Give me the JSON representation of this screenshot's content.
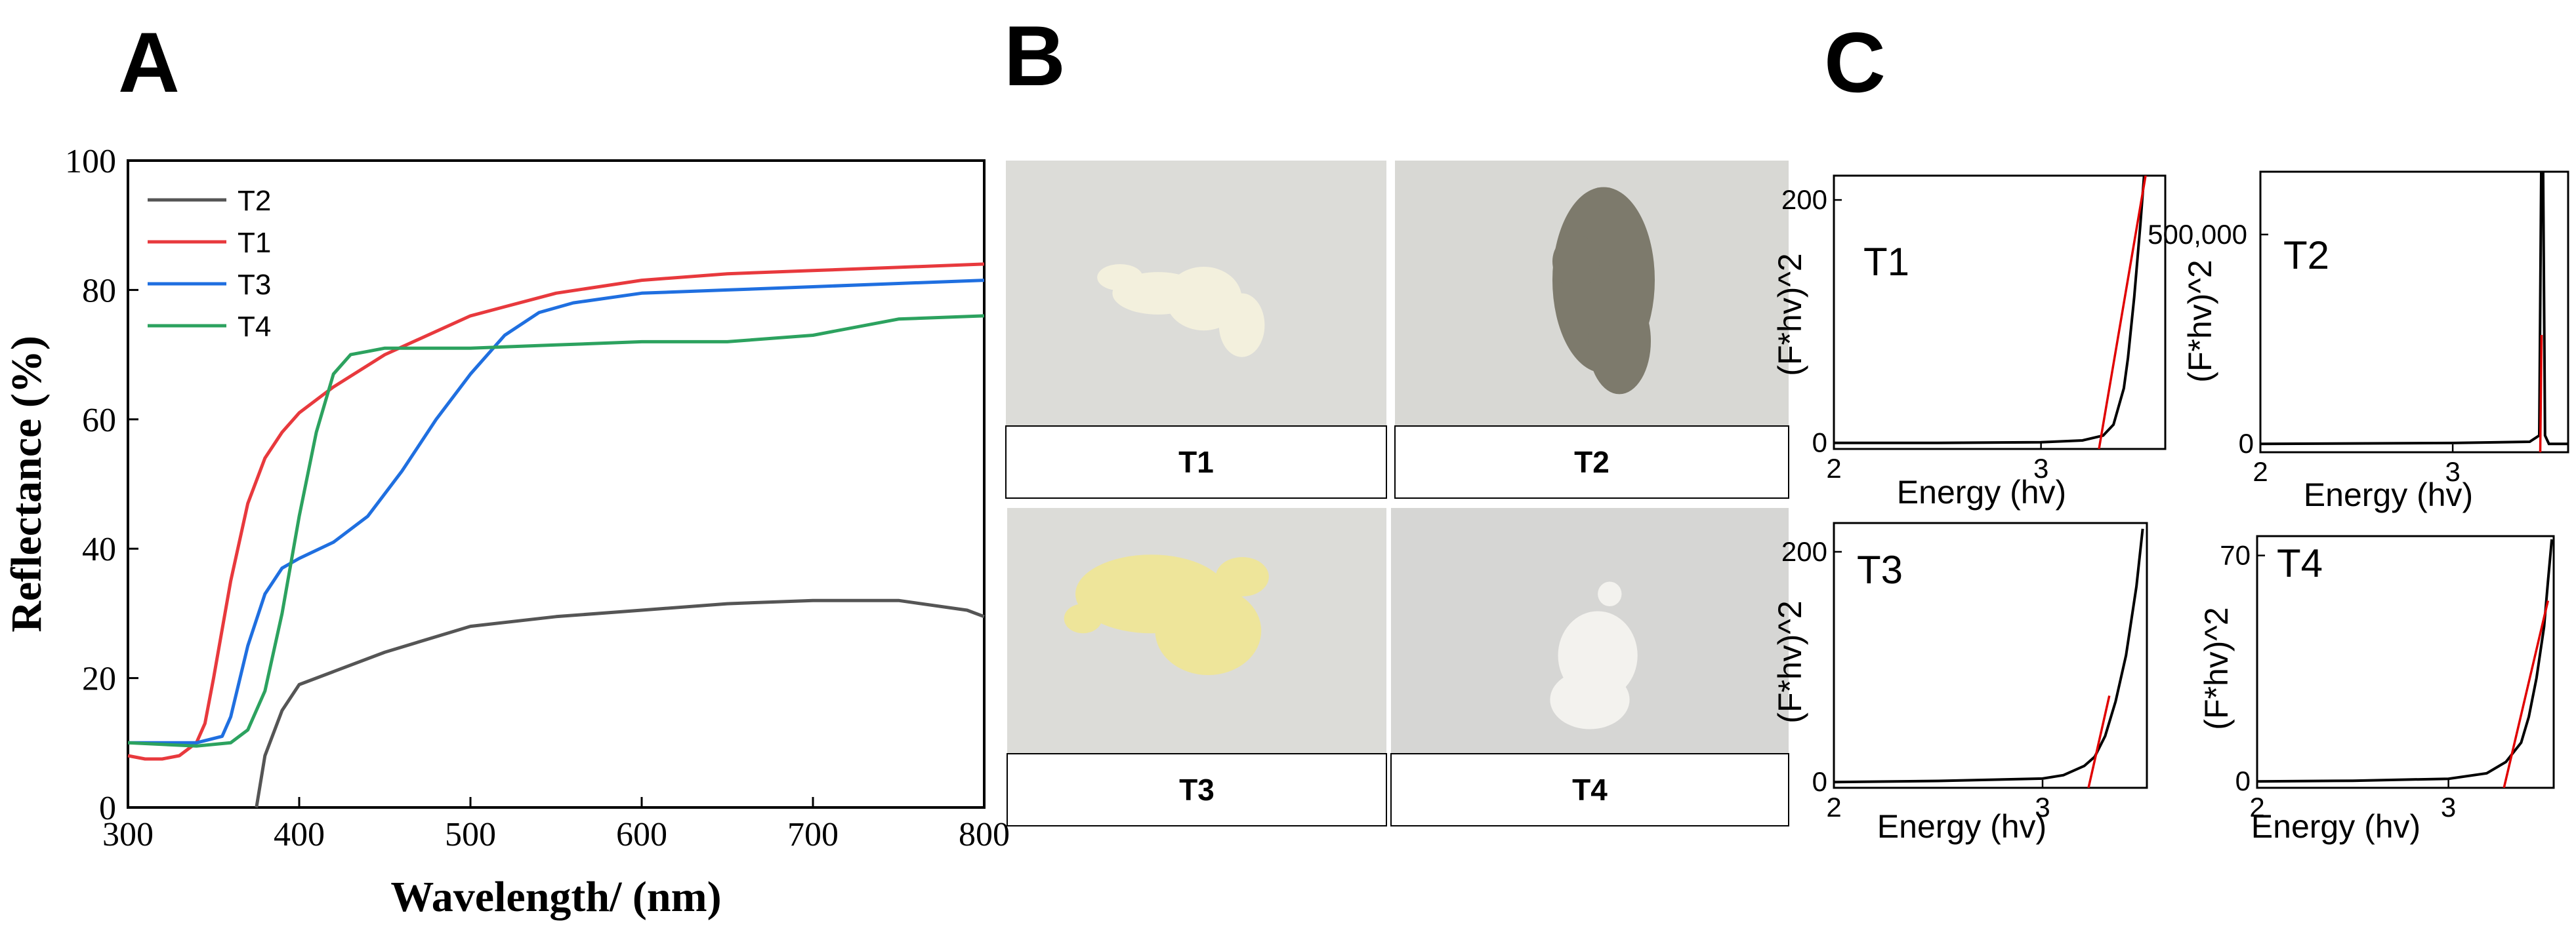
{
  "panels": {
    "a": "A",
    "b": "B",
    "c": "C"
  },
  "photos": [
    {
      "label": "T1",
      "powder_color": "#f3f0dd",
      "bg": "#dcdcd8"
    },
    {
      "label": "T2",
      "powder_color": "#7d7a6c",
      "bg": "#d8d8d4"
    },
    {
      "label": "T3",
      "powder_color": "#eee59a",
      "bg": "#dcdcd8"
    },
    {
      "label": "T4",
      "powder_color": "#f3f2ee",
      "bg": "#d6d6d4"
    }
  ],
  "chart_data": [
    {
      "type": "line",
      "xlabel": "Wavelength/ (nm)",
      "ylabel": "Reflectance (%)",
      "xlim": [
        300,
        800
      ],
      "ylim": [
        0,
        100
      ],
      "x_ticks": [
        300,
        400,
        500,
        600,
        700,
        800
      ],
      "y_ticks": [
        0,
        20,
        40,
        60,
        80,
        100
      ],
      "legend": "top-left",
      "series": [
        {
          "name": "T2",
          "color": "#555555",
          "x": [
            375,
            380,
            390,
            400,
            420,
            450,
            500,
            550,
            600,
            650,
            700,
            750,
            790,
            800
          ],
          "values": [
            0,
            8,
            15,
            19,
            21,
            24,
            28,
            29.5,
            30.5,
            31.5,
            32,
            32,
            30.5,
            29.5
          ]
        },
        {
          "name": "T1",
          "color": "#e8393d",
          "x": [
            300,
            310,
            320,
            330,
            340,
            345,
            350,
            360,
            370,
            380,
            390,
            400,
            420,
            450,
            500,
            550,
            600,
            650,
            700,
            750,
            800
          ],
          "values": [
            8,
            7.5,
            7.5,
            8,
            10,
            13,
            20,
            35,
            47,
            54,
            58,
            61,
            65,
            70,
            76,
            79.5,
            81.5,
            82.5,
            83,
            83.5,
            84
          ]
        },
        {
          "name": "T3",
          "color": "#1f6fe0",
          "x": [
            300,
            320,
            340,
            355,
            360,
            370,
            380,
            390,
            400,
            420,
            440,
            460,
            480,
            500,
            520,
            540,
            560,
            600,
            650,
            700,
            750,
            800
          ],
          "values": [
            10,
            10,
            10,
            11,
            14,
            25,
            33,
            37,
            38.5,
            41,
            45,
            52,
            60,
            67,
            73,
            76.5,
            78,
            79.5,
            80,
            80.5,
            81,
            81.5
          ]
        },
        {
          "name": "T4",
          "color": "#2ca25f",
          "x": [
            300,
            340,
            360,
            370,
            380,
            390,
            400,
            410,
            420,
            430,
            440,
            450,
            500,
            550,
            600,
            650,
            700,
            750,
            800
          ],
          "values": [
            10,
            9.5,
            10,
            12,
            18,
            30,
            45,
            58,
            67,
            70,
            70.5,
            71,
            71,
            71.5,
            72,
            72,
            73,
            75.5,
            76
          ]
        }
      ]
    },
    {
      "type": "line",
      "title": "T1",
      "xlabel": "Energy (hv)",
      "ylabel": "(F*hv)^2",
      "xlim": [
        2,
        3.6
      ],
      "ylim": [
        -5,
        220
      ],
      "x_ticks": [
        2,
        3
      ],
      "y_ticks": [
        0,
        200
      ],
      "series": [
        {
          "color": "#000000",
          "x": [
            2.0,
            2.5,
            3.0,
            3.2,
            3.3,
            3.35,
            3.4,
            3.42,
            3.45,
            3.48,
            3.5
          ],
          "values": [
            0,
            0,
            0.5,
            2,
            6,
            15,
            45,
            70,
            120,
            180,
            225
          ]
        },
        {
          "color": "#e00000",
          "x": [
            3.28,
            3.51
          ],
          "values": [
            -5,
            225
          ]
        }
      ]
    },
    {
      "type": "line",
      "title": "T2",
      "xlabel": "Energy (hv)",
      "ylabel": "(F*hv)^2",
      "xlim": [
        2,
        3.6
      ],
      "ylim": [
        -20000,
        650000
      ],
      "x_ticks": [
        2,
        3
      ],
      "y_ticks": [
        0,
        500000
      ],
      "y_tick_labels": [
        "0",
        "500,000"
      ],
      "series": [
        {
          "color": "#000000",
          "x": [
            2.0,
            3.0,
            3.4,
            3.45,
            3.46,
            3.47,
            3.48,
            3.5,
            3.6
          ],
          "values": [
            0,
            2000,
            5000,
            20000,
            650000,
            650000,
            20000,
            0,
            0
          ]
        },
        {
          "color": "#e00000",
          "x": [
            3.455,
            3.462
          ],
          "values": [
            -20000,
            260000
          ]
        }
      ]
    },
    {
      "type": "line",
      "title": "T3",
      "xlabel": "Energy (hv)",
      "ylabel": "(F*hv)^2",
      "xlim": [
        2,
        3.5
      ],
      "ylim": [
        -5,
        225
      ],
      "x_ticks": [
        2,
        3
      ],
      "y_ticks": [
        0,
        200
      ],
      "series": [
        {
          "color": "#000000",
          "x": [
            2.0,
            2.5,
            3.0,
            3.1,
            3.2,
            3.25,
            3.3,
            3.35,
            3.4,
            3.45,
            3.48
          ],
          "values": [
            0,
            1,
            3,
            6,
            14,
            22,
            40,
            70,
            110,
            170,
            220
          ]
        },
        {
          "color": "#e00000",
          "x": [
            3.22,
            3.32
          ],
          "values": [
            -5,
            75
          ]
        }
      ]
    },
    {
      "type": "line",
      "title": "T4",
      "xlabel": "Energy (hv)",
      "ylabel": "(F*hv)^2",
      "xlim": [
        2,
        3.55
      ],
      "ylim": [
        -2,
        76
      ],
      "x_ticks": [
        2,
        3
      ],
      "y_ticks": [
        0,
        70
      ],
      "series": [
        {
          "color": "#000000",
          "x": [
            2.0,
            2.5,
            3.0,
            3.2,
            3.3,
            3.38,
            3.42,
            3.46,
            3.5,
            3.52,
            3.54
          ],
          "values": [
            0,
            0.2,
            0.8,
            2.5,
            6,
            12,
            20,
            32,
            48,
            62,
            75
          ]
        },
        {
          "color": "#e00000",
          "x": [
            3.29,
            3.52
          ],
          "values": [
            -2,
            56
          ]
        }
      ]
    }
  ]
}
